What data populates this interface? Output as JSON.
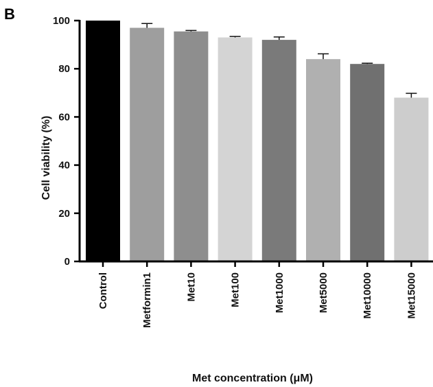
{
  "panel_label": "B",
  "chart_data": {
    "type": "bar",
    "categories": [
      "Control",
      "Metformin1",
      "Met10",
      "Met100",
      "Met1000",
      "Met5000",
      "Met10000",
      "Met15000"
    ],
    "values": [
      100,
      97,
      95.5,
      93,
      92,
      84,
      82,
      68
    ],
    "errors": [
      0,
      1.8,
      0.4,
      0.4,
      1.2,
      2.2,
      0.3,
      1.8
    ],
    "colors": [
      "#000000",
      "#9e9e9e",
      "#8e8e8e",
      "#d4d4d4",
      "#7a7a7a",
      "#b0b0b0",
      "#707070",
      "#cdcdcd"
    ],
    "xlabel": "Met concentration (μM)",
    "ylabel": "Cell viability (%)",
    "ylim": [
      0,
      100
    ],
    "yticks": [
      0,
      20,
      40,
      60,
      80,
      100
    ],
    "grid": false
  }
}
